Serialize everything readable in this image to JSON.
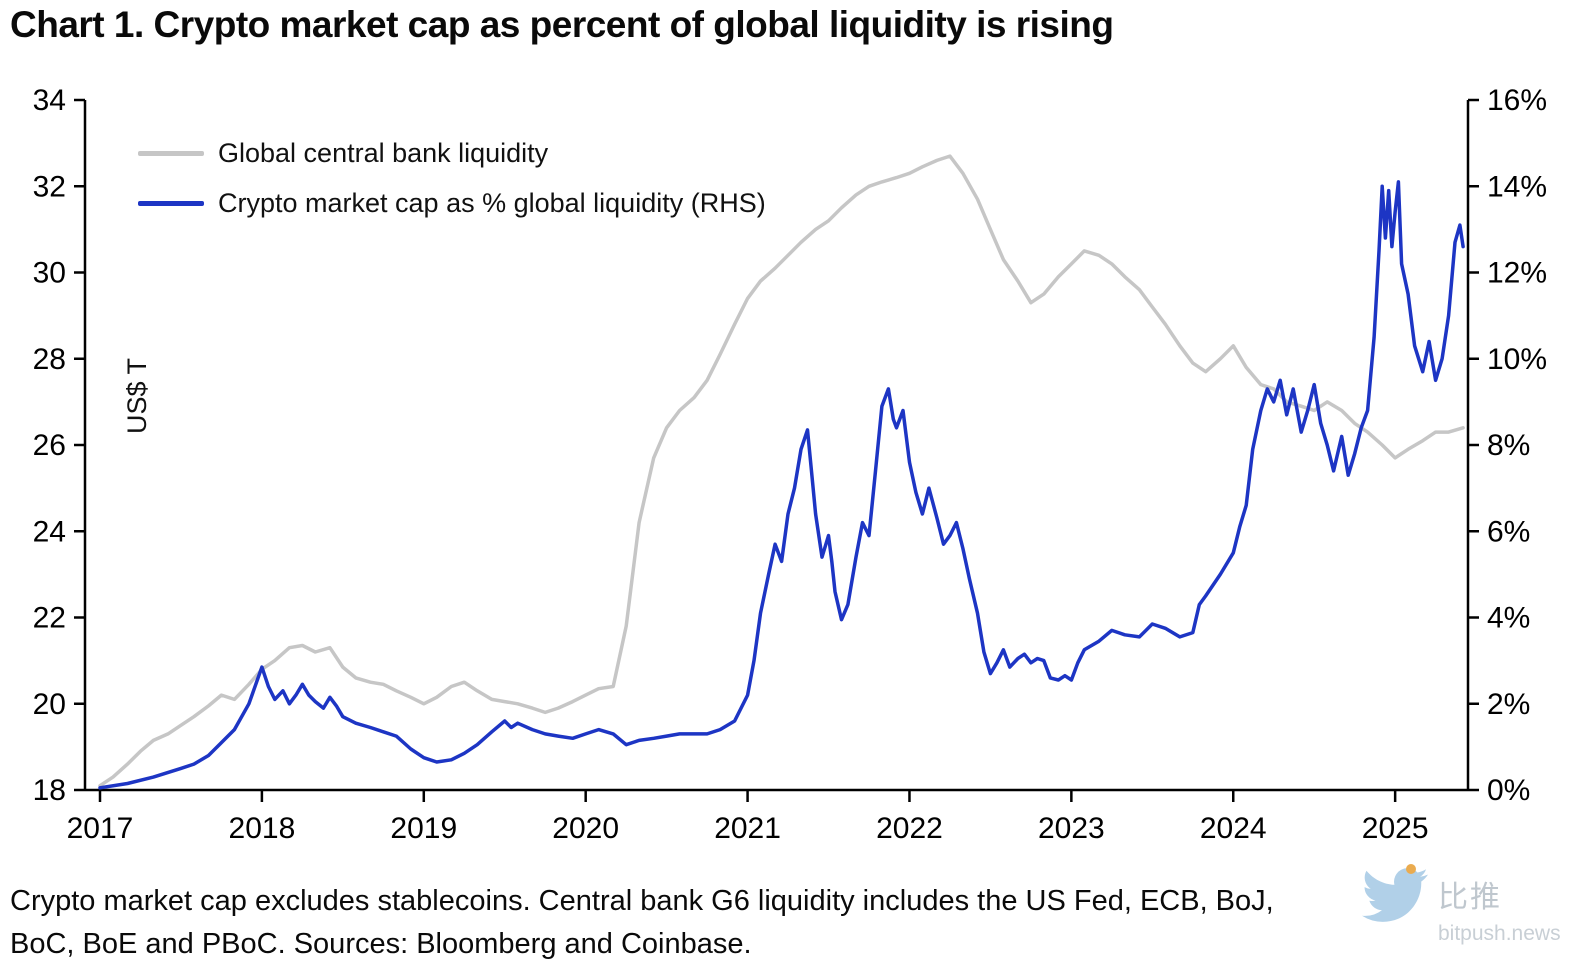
{
  "title": "Chart 1. Crypto market cap as percent of global liquidity is rising",
  "footnote": {
    "line1": "Crypto market cap excludes stablecoins. Central bank G6 liquidity includes the US Fed, ECB, BoJ,",
    "line2": "BoC, BoE and PBoC. Sources: Bloomberg and Coinbase."
  },
  "watermark": {
    "cn": "比推",
    "domain": "bitpush.news"
  },
  "chart_data": {
    "type": "line",
    "title": "Chart 1. Crypto market cap as percent of global liquidity is rising",
    "grid": false,
    "legend_position": "top-left",
    "x_axis": {
      "min": 2017,
      "max": 2025.45,
      "ticks": [
        2017,
        2018,
        2019,
        2020,
        2021,
        2022,
        2023,
        2024,
        2025
      ]
    },
    "left_axis": {
      "label": "US$ T",
      "min": 18,
      "max": 34,
      "ticks": [
        18,
        20,
        22,
        24,
        26,
        28,
        30,
        32,
        34
      ]
    },
    "right_axis": {
      "label": "%",
      "min": 0,
      "max": 16,
      "ticks": [
        0,
        2,
        4,
        6,
        8,
        10,
        12,
        14,
        16
      ],
      "tick_labels": [
        "0%",
        "2%",
        "4%",
        "6%",
        "8%",
        "10%",
        "12%",
        "14%",
        "16%"
      ]
    },
    "series": [
      {
        "name": "Global central bank liquidity",
        "axis": "left",
        "color": "#c6c6c6",
        "points": [
          [
            2017.0,
            18.1
          ],
          [
            2017.08,
            18.3
          ],
          [
            2017.17,
            18.6
          ],
          [
            2017.25,
            18.9
          ],
          [
            2017.33,
            19.15
          ],
          [
            2017.42,
            19.3
          ],
          [
            2017.5,
            19.5
          ],
          [
            2017.58,
            19.7
          ],
          [
            2017.67,
            19.95
          ],
          [
            2017.75,
            20.2
          ],
          [
            2017.83,
            20.1
          ],
          [
            2017.92,
            20.45
          ],
          [
            2018.0,
            20.8
          ],
          [
            2018.08,
            21.0
          ],
          [
            2018.17,
            21.3
          ],
          [
            2018.25,
            21.35
          ],
          [
            2018.33,
            21.2
          ],
          [
            2018.42,
            21.3
          ],
          [
            2018.5,
            20.85
          ],
          [
            2018.58,
            20.6
          ],
          [
            2018.67,
            20.5
          ],
          [
            2018.75,
            20.45
          ],
          [
            2018.83,
            20.3
          ],
          [
            2018.92,
            20.15
          ],
          [
            2019.0,
            20.0
          ],
          [
            2019.08,
            20.15
          ],
          [
            2019.17,
            20.4
          ],
          [
            2019.25,
            20.5
          ],
          [
            2019.33,
            20.3
          ],
          [
            2019.42,
            20.1
          ],
          [
            2019.5,
            20.05
          ],
          [
            2019.58,
            20.0
          ],
          [
            2019.67,
            19.9
          ],
          [
            2019.75,
            19.8
          ],
          [
            2019.83,
            19.9
          ],
          [
            2019.92,
            20.05
          ],
          [
            2020.0,
            20.2
          ],
          [
            2020.08,
            20.35
          ],
          [
            2020.17,
            20.4
          ],
          [
            2020.25,
            21.8
          ],
          [
            2020.33,
            24.2
          ],
          [
            2020.42,
            25.7
          ],
          [
            2020.5,
            26.4
          ],
          [
            2020.58,
            26.8
          ],
          [
            2020.67,
            27.1
          ],
          [
            2020.75,
            27.5
          ],
          [
            2020.83,
            28.1
          ],
          [
            2020.92,
            28.8
          ],
          [
            2021.0,
            29.4
          ],
          [
            2021.08,
            29.8
          ],
          [
            2021.17,
            30.1
          ],
          [
            2021.25,
            30.4
          ],
          [
            2021.33,
            30.7
          ],
          [
            2021.42,
            31.0
          ],
          [
            2021.5,
            31.2
          ],
          [
            2021.58,
            31.5
          ],
          [
            2021.67,
            31.8
          ],
          [
            2021.75,
            32.0
          ],
          [
            2021.83,
            32.1
          ],
          [
            2021.92,
            32.2
          ],
          [
            2022.0,
            32.3
          ],
          [
            2022.08,
            32.45
          ],
          [
            2022.17,
            32.6
          ],
          [
            2022.25,
            32.7
          ],
          [
            2022.33,
            32.3
          ],
          [
            2022.42,
            31.7
          ],
          [
            2022.5,
            31.0
          ],
          [
            2022.58,
            30.3
          ],
          [
            2022.67,
            29.8
          ],
          [
            2022.75,
            29.3
          ],
          [
            2022.83,
            29.5
          ],
          [
            2022.92,
            29.9
          ],
          [
            2023.0,
            30.2
          ],
          [
            2023.08,
            30.5
          ],
          [
            2023.17,
            30.4
          ],
          [
            2023.25,
            30.2
          ],
          [
            2023.33,
            29.9
          ],
          [
            2023.42,
            29.6
          ],
          [
            2023.5,
            29.2
          ],
          [
            2023.58,
            28.8
          ],
          [
            2023.67,
            28.3
          ],
          [
            2023.75,
            27.9
          ],
          [
            2023.83,
            27.7
          ],
          [
            2023.92,
            28.0
          ],
          [
            2024.0,
            28.3
          ],
          [
            2024.08,
            27.8
          ],
          [
            2024.17,
            27.4
          ],
          [
            2024.25,
            27.3
          ],
          [
            2024.33,
            27.0
          ],
          [
            2024.42,
            26.9
          ],
          [
            2024.5,
            26.8
          ],
          [
            2024.58,
            27.0
          ],
          [
            2024.67,
            26.8
          ],
          [
            2024.75,
            26.5
          ],
          [
            2024.83,
            26.3
          ],
          [
            2024.92,
            26.0
          ],
          [
            2025.0,
            25.7
          ],
          [
            2025.08,
            25.9
          ],
          [
            2025.17,
            26.1
          ],
          [
            2025.25,
            26.3
          ],
          [
            2025.33,
            26.3
          ],
          [
            2025.42,
            26.4
          ]
        ]
      },
      {
        "name": "Crypto market cap as % global liquidity (RHS)",
        "axis": "right",
        "color": "#1d35c4",
        "points": [
          [
            2017.0,
            0.05
          ],
          [
            2017.17,
            0.15
          ],
          [
            2017.33,
            0.3
          ],
          [
            2017.5,
            0.5
          ],
          [
            2017.58,
            0.6
          ],
          [
            2017.67,
            0.8
          ],
          [
            2017.75,
            1.1
          ],
          [
            2017.83,
            1.4
          ],
          [
            2017.92,
            2.0
          ],
          [
            2018.0,
            2.85
          ],
          [
            2018.04,
            2.4
          ],
          [
            2018.08,
            2.1
          ],
          [
            2018.13,
            2.3
          ],
          [
            2018.17,
            2.0
          ],
          [
            2018.21,
            2.2
          ],
          [
            2018.25,
            2.45
          ],
          [
            2018.29,
            2.2
          ],
          [
            2018.33,
            2.05
          ],
          [
            2018.38,
            1.9
          ],
          [
            2018.42,
            2.15
          ],
          [
            2018.46,
            1.95
          ],
          [
            2018.5,
            1.7
          ],
          [
            2018.58,
            1.55
          ],
          [
            2018.67,
            1.45
          ],
          [
            2018.75,
            1.35
          ],
          [
            2018.83,
            1.25
          ],
          [
            2018.92,
            0.95
          ],
          [
            2019.0,
            0.75
          ],
          [
            2019.08,
            0.65
          ],
          [
            2019.17,
            0.7
          ],
          [
            2019.25,
            0.85
          ],
          [
            2019.33,
            1.05
          ],
          [
            2019.42,
            1.35
          ],
          [
            2019.5,
            1.6
          ],
          [
            2019.54,
            1.45
          ],
          [
            2019.58,
            1.55
          ],
          [
            2019.67,
            1.4
          ],
          [
            2019.75,
            1.3
          ],
          [
            2019.83,
            1.25
          ],
          [
            2019.92,
            1.2
          ],
          [
            2020.0,
            1.3
          ],
          [
            2020.08,
            1.4
          ],
          [
            2020.17,
            1.3
          ],
          [
            2020.25,
            1.05
          ],
          [
            2020.33,
            1.15
          ],
          [
            2020.42,
            1.2
          ],
          [
            2020.5,
            1.25
          ],
          [
            2020.58,
            1.3
          ],
          [
            2020.67,
            1.3
          ],
          [
            2020.75,
            1.3
          ],
          [
            2020.83,
            1.4
          ],
          [
            2020.92,
            1.6
          ],
          [
            2021.0,
            2.2
          ],
          [
            2021.04,
            3.0
          ],
          [
            2021.08,
            4.1
          ],
          [
            2021.13,
            5.0
          ],
          [
            2021.17,
            5.7
          ],
          [
            2021.21,
            5.3
          ],
          [
            2021.25,
            6.4
          ],
          [
            2021.29,
            7.0
          ],
          [
            2021.33,
            7.9
          ],
          [
            2021.37,
            8.35
          ],
          [
            2021.4,
            7.2
          ],
          [
            2021.42,
            6.4
          ],
          [
            2021.46,
            5.4
          ],
          [
            2021.5,
            5.9
          ],
          [
            2021.52,
            5.3
          ],
          [
            2021.54,
            4.6
          ],
          [
            2021.58,
            3.95
          ],
          [
            2021.62,
            4.3
          ],
          [
            2021.67,
            5.4
          ],
          [
            2021.71,
            6.2
          ],
          [
            2021.75,
            5.9
          ],
          [
            2021.79,
            7.4
          ],
          [
            2021.83,
            8.9
          ],
          [
            2021.87,
            9.3
          ],
          [
            2021.9,
            8.6
          ],
          [
            2021.92,
            8.4
          ],
          [
            2021.96,
            8.8
          ],
          [
            2022.0,
            7.6
          ],
          [
            2022.04,
            6.9
          ],
          [
            2022.08,
            6.4
          ],
          [
            2022.12,
            7.0
          ],
          [
            2022.17,
            6.3
          ],
          [
            2022.21,
            5.7
          ],
          [
            2022.25,
            5.9
          ],
          [
            2022.29,
            6.2
          ],
          [
            2022.33,
            5.6
          ],
          [
            2022.37,
            4.9
          ],
          [
            2022.42,
            4.1
          ],
          [
            2022.46,
            3.2
          ],
          [
            2022.5,
            2.7
          ],
          [
            2022.54,
            2.95
          ],
          [
            2022.58,
            3.25
          ],
          [
            2022.62,
            2.85
          ],
          [
            2022.67,
            3.05
          ],
          [
            2022.71,
            3.15
          ],
          [
            2022.75,
            2.95
          ],
          [
            2022.79,
            3.05
          ],
          [
            2022.83,
            3.0
          ],
          [
            2022.87,
            2.6
          ],
          [
            2022.92,
            2.55
          ],
          [
            2022.96,
            2.65
          ],
          [
            2023.0,
            2.55
          ],
          [
            2023.04,
            2.95
          ],
          [
            2023.08,
            3.25
          ],
          [
            2023.17,
            3.45
          ],
          [
            2023.25,
            3.7
          ],
          [
            2023.33,
            3.6
          ],
          [
            2023.42,
            3.55
          ],
          [
            2023.5,
            3.85
          ],
          [
            2023.58,
            3.75
          ],
          [
            2023.67,
            3.55
          ],
          [
            2023.75,
            3.65
          ],
          [
            2023.79,
            4.3
          ],
          [
            2023.83,
            4.5
          ],
          [
            2023.92,
            5.0
          ],
          [
            2024.0,
            5.5
          ],
          [
            2024.04,
            6.1
          ],
          [
            2024.08,
            6.6
          ],
          [
            2024.12,
            7.9
          ],
          [
            2024.17,
            8.8
          ],
          [
            2024.21,
            9.3
          ],
          [
            2024.25,
            9.0
          ],
          [
            2024.29,
            9.5
          ],
          [
            2024.33,
            8.7
          ],
          [
            2024.37,
            9.3
          ],
          [
            2024.42,
            8.3
          ],
          [
            2024.46,
            8.8
          ],
          [
            2024.5,
            9.4
          ],
          [
            2024.54,
            8.5
          ],
          [
            2024.58,
            8.0
          ],
          [
            2024.62,
            7.4
          ],
          [
            2024.67,
            8.2
          ],
          [
            2024.71,
            7.3
          ],
          [
            2024.75,
            7.8
          ],
          [
            2024.79,
            8.4
          ],
          [
            2024.83,
            8.8
          ],
          [
            2024.87,
            10.5
          ],
          [
            2024.9,
            12.5
          ],
          [
            2024.92,
            14.0
          ],
          [
            2024.94,
            12.8
          ],
          [
            2024.96,
            13.9
          ],
          [
            2024.98,
            12.6
          ],
          [
            2025.0,
            13.4
          ],
          [
            2025.02,
            14.1
          ],
          [
            2025.04,
            12.2
          ],
          [
            2025.08,
            11.5
          ],
          [
            2025.12,
            10.3
          ],
          [
            2025.17,
            9.7
          ],
          [
            2025.21,
            10.4
          ],
          [
            2025.25,
            9.5
          ],
          [
            2025.29,
            10.0
          ],
          [
            2025.33,
            11.0
          ],
          [
            2025.37,
            12.7
          ],
          [
            2025.4,
            13.1
          ],
          [
            2025.42,
            12.6
          ]
        ]
      }
    ]
  }
}
